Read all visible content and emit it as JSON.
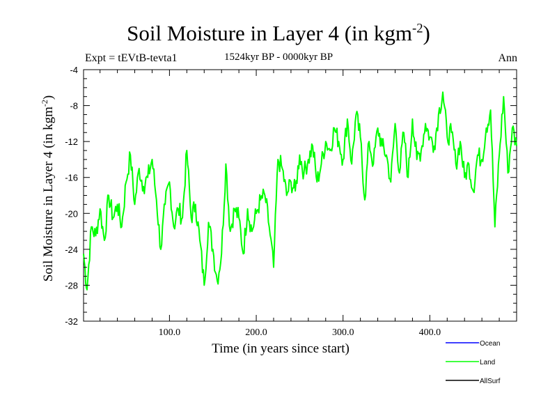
{
  "header": {
    "title_main": "Soil Moisture in Layer 4 (in kgm",
    "title_exp": "-2",
    "title_close": ")",
    "subtitle": "1524kyr BP - 0000kyr BP",
    "expt": "Expt = tEVtB-tevta1",
    "season": "Ann"
  },
  "colors": {
    "land": "#00ff00",
    "ocean": "#0000ff",
    "allsurf": "#000000"
  },
  "chart_data": {
    "type": "line",
    "title": "Soil Moisture in Layer 4 (in kgm-2)",
    "subtitle": "1524kyr BP - 0000kyr BP",
    "xlabel": "Time (in years since start)",
    "ylabel": "Soil Moisture in Layer 4 (in kgm-2)",
    "xlim": [
      1,
      500
    ],
    "ylim": [
      -32,
      -4
    ],
    "xticks": [
      100,
      200,
      300,
      400
    ],
    "xtick_labels": [
      "100.0",
      "200.0",
      "300.0",
      "400.0"
    ],
    "yticks": [
      -4,
      -8,
      -12,
      -16,
      -20,
      -24,
      -28,
      -32
    ],
    "ytick_labels": [
      "-4",
      "-8",
      "-12",
      "-16",
      "-20",
      "-24",
      "-28",
      "-32"
    ],
    "legend": [
      "Ocean",
      "Land",
      "AllSurf"
    ],
    "legend_position": "bottom-right",
    "series": [
      {
        "name": "Land",
        "color": "#00ff00",
        "x": [
          1,
          5,
          10,
          15,
          20,
          25,
          30,
          35,
          40,
          45,
          50,
          55,
          60,
          65,
          70,
          75,
          80,
          85,
          90,
          95,
          100,
          105,
          110,
          115,
          120,
          125,
          130,
          135,
          140,
          145,
          150,
          155,
          160,
          165,
          170,
          175,
          180,
          185,
          190,
          195,
          200,
          205,
          210,
          215,
          220,
          225,
          230,
          235,
          240,
          245,
          250,
          255,
          260,
          265,
          270,
          275,
          280,
          285,
          290,
          295,
          300,
          305,
          310,
          315,
          320,
          325,
          330,
          335,
          340,
          345,
          350,
          355,
          360,
          365,
          370,
          375,
          380,
          385,
          390,
          395,
          400,
          405,
          410,
          415,
          420,
          425,
          430,
          435,
          440,
          445,
          450,
          455,
          460,
          465,
          470,
          475,
          480,
          485,
          490,
          495,
          500
        ],
        "values": [
          -24.5,
          -28.5,
          -21.5,
          -22.5,
          -19.5,
          -23.0,
          -18.0,
          -20.5,
          -19.0,
          -21.5,
          -16.5,
          -13.5,
          -19.0,
          -15.0,
          -17.0,
          -16.0,
          -14.0,
          -18.5,
          -24.0,
          -19.0,
          -16.5,
          -21.5,
          -19.5,
          -20.5,
          -13.0,
          -20.5,
          -19.0,
          -23.0,
          -28.0,
          -21.0,
          -24.0,
          -27.5,
          -24.5,
          -14.5,
          -22.0,
          -19.5,
          -20.5,
          -24.5,
          -19.5,
          -22.0,
          -20.0,
          -18.5,
          -18.0,
          -21.5,
          -26.0,
          -14.0,
          -15.0,
          -18.0,
          -16.5,
          -17.5,
          -13.5,
          -15.5,
          -14.0,
          -12.5,
          -16.5,
          -14.5,
          -12.0,
          -13.0,
          -10.5,
          -12.0,
          -14.0,
          -9.5,
          -14.5,
          -9.0,
          -11.5,
          -18.5,
          -12.0,
          -14.5,
          -10.5,
          -12.5,
          -13.5,
          -16.5,
          -10.0,
          -15.5,
          -11.0,
          -16.0,
          -9.5,
          -14.0,
          -13.0,
          -10.0,
          -11.5,
          -12.5,
          -9.0,
          -6.5,
          -11.5,
          -11.0,
          -14.5,
          -12.0,
          -16.0,
          -14.5,
          -17.5,
          -13.5,
          -14.0,
          -10.5,
          -8.5,
          -21.5,
          -13.5,
          -7.0,
          -15.5,
          -10.5,
          -12.5
        ]
      },
      {
        "name": "Ocean",
        "color": "#0000ff",
        "x": [],
        "values": []
      },
      {
        "name": "AllSurf",
        "color": "#000000",
        "x": [],
        "values": []
      }
    ]
  }
}
